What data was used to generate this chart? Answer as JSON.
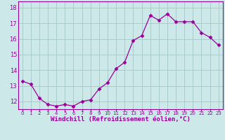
{
  "x": [
    0,
    1,
    2,
    3,
    4,
    5,
    6,
    7,
    8,
    9,
    10,
    11,
    12,
    13,
    14,
    15,
    16,
    17,
    18,
    19,
    20,
    21,
    22,
    23
  ],
  "y": [
    13.3,
    13.1,
    12.2,
    11.8,
    11.7,
    11.8,
    11.7,
    12.0,
    12.1,
    12.8,
    13.2,
    14.1,
    14.5,
    15.9,
    16.2,
    17.5,
    17.2,
    17.6,
    17.1,
    17.1,
    17.1,
    16.4,
    16.1,
    15.6
  ],
  "line_color": "#990099",
  "marker": "D",
  "marker_size": 2.5,
  "bg_color": "#cce8e8",
  "grid_color": "#aacccc",
  "xlabel": "Windchill (Refroidissement éolien,°C)",
  "xlabel_color": "#990099",
  "yticks": [
    12,
    13,
    14,
    15,
    16,
    17,
    18
  ],
  "xtick_labels": [
    "0",
    "1",
    "2",
    "3",
    "4",
    "5",
    "6",
    "7",
    "8",
    "9",
    "10",
    "11",
    "12",
    "13",
    "14",
    "15",
    "16",
    "17",
    "18",
    "19",
    "20",
    "21",
    "22",
    "23"
  ],
  "ylim": [
    11.5,
    18.4
  ],
  "xlim": [
    -0.5,
    23.5
  ]
}
